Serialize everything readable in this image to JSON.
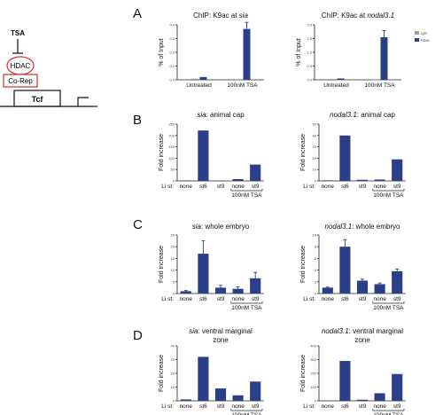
{
  "diagram": {
    "tsa": "TSA",
    "hdac": "HDAC",
    "corep": "Co-Rep",
    "tcf": "Tcf"
  },
  "colors": {
    "bar": "#2b3f86",
    "legend_gray": "#9a9a9a",
    "hdac_outline": "#d32f2f"
  },
  "legend": {
    "items": [
      "IgG",
      "K9ac"
    ]
  },
  "panels": [
    {
      "letter": "A",
      "charts": [
        0,
        1
      ]
    },
    {
      "letter": "B",
      "charts": [
        2,
        3
      ]
    },
    {
      "letter": "C",
      "charts": [
        4,
        5
      ]
    },
    {
      "letter": "D",
      "charts": [
        6,
        7
      ]
    }
  ],
  "chart_data": [
    {
      "type": "bar",
      "title_prefix": "ChIP: K9ac at ",
      "title_gene": "sia",
      "title_suffix": "",
      "ylabel": "% of Input",
      "ylim": [
        0,
        0.4
      ],
      "yticks": [
        "0.0",
        "0.1",
        "0.2",
        "0.3",
        "0.4"
      ],
      "groups": [
        "Untreated",
        "100nM TSA"
      ],
      "series": [
        {
          "name": "IgG",
          "values": [
            0.008,
            0.005
          ]
        },
        {
          "name": "K9ac",
          "values": [
            0.02,
            0.37
          ]
        }
      ]
    },
    {
      "type": "bar",
      "title_prefix": "ChIP: K9ac at ",
      "title_gene": "nodal3.1",
      "title_suffix": "",
      "ylabel": "% of Input",
      "ylim": [
        0,
        2.0
      ],
      "yticks": [
        "0.0",
        "0.5",
        "1.0",
        "1.5",
        "2.0"
      ],
      "groups": [
        "Untreated",
        "100nM TSA"
      ],
      "series": [
        {
          "name": "IgG",
          "values": [
            0.03,
            0.02
          ]
        },
        {
          "name": "K9ac",
          "values": [
            0.05,
            1.55
          ]
        }
      ]
    },
    {
      "type": "bar",
      "title_prefix": "",
      "title_gene": "sia",
      "title_suffix": ": animal cap",
      "ylabel": "Fold increase",
      "ylim": [
        0,
        250
      ],
      "yticks": [
        "0",
        "50",
        "100",
        "150",
        "200",
        "250"
      ],
      "xprefix": "Li st:",
      "categories": [
        "none",
        "st6",
        "st9",
        "none",
        "st9"
      ],
      "values": [
        2,
        222,
        1,
        8,
        72
      ],
      "bracket_label": "100nM TSA"
    },
    {
      "type": "bar",
      "title_prefix": "",
      "title_gene": "nodal3.1",
      "title_suffix": ": animal cap",
      "ylabel": "Fold increase",
      "ylim": [
        0,
        50
      ],
      "yticks": [
        "0",
        "10",
        "20",
        "30",
        "40",
        "50"
      ],
      "xprefix": "Li st:",
      "categories": [
        "none",
        "st6",
        "st9",
        "none",
        "st9"
      ],
      "values": [
        0.5,
        40,
        1,
        1.2,
        19
      ],
      "bracket_label": "100nM TSA"
    },
    {
      "type": "bar",
      "title_prefix": "",
      "title_gene": "sia",
      "title_suffix": ": whole embryo",
      "ylabel": "Fold increase",
      "ylim": [
        0,
        25
      ],
      "yticks": [
        "0",
        "5",
        "10",
        "15",
        "20",
        "25"
      ],
      "xprefix": "Li st:",
      "categories": [
        "none",
        "st6",
        "st9",
        "none",
        "st9"
      ],
      "values": [
        1,
        17,
        2.5,
        2,
        6.5
      ],
      "errors": [
        0.3,
        5.5,
        1,
        0.8,
        2.5
      ],
      "bracket_label": "100nM TSA"
    },
    {
      "type": "bar",
      "title_prefix": "",
      "title_gene": "nodal3.1",
      "title_suffix": ": whole embryo",
      "ylabel": "Fold increase",
      "ylim": [
        0,
        10
      ],
      "yticks": [
        "0",
        "2",
        "4",
        "6",
        "8",
        "10"
      ],
      "xprefix": "Li st:",
      "categories": [
        "none",
        "st6",
        "st9",
        "none",
        "st9"
      ],
      "values": [
        1,
        8,
        2.2,
        1.6,
        3.8
      ],
      "errors": [
        0.1,
        1.2,
        0.25,
        0.2,
        0.4
      ],
      "bracket_label": "100nM TSA"
    },
    {
      "type": "bar",
      "title_prefix": "",
      "title_gene": "sia",
      "title_suffix": ": ventral marginal zone",
      "ylabel": "Fold increase",
      "ylim": [
        0,
        40
      ],
      "yticks": [
        "0",
        "10",
        "20",
        "30",
        "40"
      ],
      "xprefix": "Li st:",
      "categories": [
        "none",
        "st6",
        "st9",
        "none",
        "st9"
      ],
      "values": [
        1,
        32,
        9,
        4,
        14
      ],
      "bracket_label": "100nM TSA"
    },
    {
      "type": "bar",
      "title_prefix": "",
      "title_gene": "nodal3.1",
      "title_suffix": ": ventral marginal zone",
      "ylabel": "Fold increase",
      "ylim": [
        0,
        400
      ],
      "yticks": [
        "0",
        "100",
        "200",
        "300",
        "400"
      ],
      "xprefix": "Li st:",
      "categories": [
        "none",
        "st6",
        "st9",
        "none",
        "st9"
      ],
      "values": [
        1,
        290,
        8,
        55,
        195
      ],
      "bracket_label": "100nM TSA"
    }
  ]
}
